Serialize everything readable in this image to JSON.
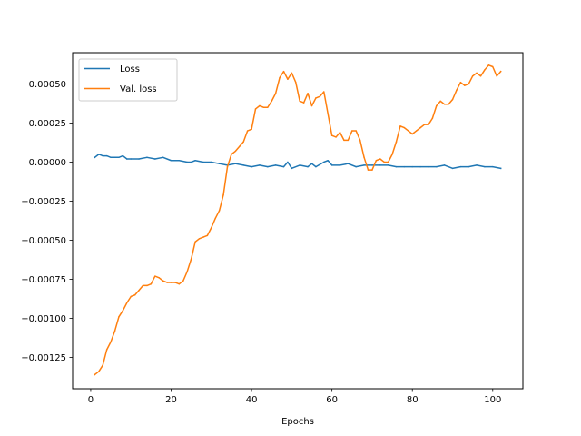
{
  "chart_data": {
    "type": "line",
    "xlabel": "Epochs",
    "ylabel": "",
    "xlim": [
      -4.5,
      107.5
    ],
    "ylim": [
      -0.00145,
      0.0007
    ],
    "xticks": [
      0,
      20,
      40,
      60,
      80,
      100
    ],
    "xtick_labels": [
      "0",
      "20",
      "40",
      "60",
      "80",
      "100"
    ],
    "yticks": [
      -0.00125,
      -0.001,
      -0.00075,
      -0.0005,
      -0.00025,
      0,
      0.00025,
      0.0005
    ],
    "ytick_labels": [
      "−0.00125",
      "−0.00100",
      "−0.00075",
      "−0.00050",
      "−0.00025",
      "0.00000",
      "0.00025",
      "0.00050"
    ],
    "grid": false,
    "legend": {
      "position": "upper-left"
    },
    "series": [
      {
        "name": "Loss",
        "color": "#1f77b4",
        "points": [
          [
            1,
            3e-05
          ],
          [
            2,
            5e-05
          ],
          [
            3,
            4e-05
          ],
          [
            4,
            4e-05
          ],
          [
            5,
            3e-05
          ],
          [
            6,
            3e-05
          ],
          [
            7,
            3e-05
          ],
          [
            8,
            4e-05
          ],
          [
            9,
            2e-05
          ],
          [
            10,
            2e-05
          ],
          [
            12,
            2e-05
          ],
          [
            14,
            3e-05
          ],
          [
            16,
            2e-05
          ],
          [
            18,
            3e-05
          ],
          [
            20,
            1e-05
          ],
          [
            22,
            1e-05
          ],
          [
            24,
            0.0
          ],
          [
            25,
            0.0
          ],
          [
            26,
            1e-05
          ],
          [
            28,
            0.0
          ],
          [
            30,
            0.0
          ],
          [
            32,
            -1e-05
          ],
          [
            34,
            -2e-05
          ],
          [
            36,
            -1e-05
          ],
          [
            38,
            -2e-05
          ],
          [
            40,
            -3e-05
          ],
          [
            42,
            -2e-05
          ],
          [
            44,
            -3e-05
          ],
          [
            46,
            -2e-05
          ],
          [
            48,
            -3e-05
          ],
          [
            49,
            0.0
          ],
          [
            50,
            -4e-05
          ],
          [
            52,
            -2e-05
          ],
          [
            54,
            -3e-05
          ],
          [
            55,
            -1e-05
          ],
          [
            56,
            -3e-05
          ],
          [
            58,
            0.0
          ],
          [
            59,
            1e-05
          ],
          [
            60,
            -2e-05
          ],
          [
            62,
            -2e-05
          ],
          [
            64,
            -1e-05
          ],
          [
            66,
            -3e-05
          ],
          [
            68,
            -2e-05
          ],
          [
            70,
            -2e-05
          ],
          [
            72,
            -2e-05
          ],
          [
            74,
            -2e-05
          ],
          [
            76,
            -3e-05
          ],
          [
            78,
            -3e-05
          ],
          [
            80,
            -3e-05
          ],
          [
            82,
            -3e-05
          ],
          [
            84,
            -3e-05
          ],
          [
            86,
            -3e-05
          ],
          [
            88,
            -2e-05
          ],
          [
            90,
            -4e-05
          ],
          [
            92,
            -3e-05
          ],
          [
            94,
            -3e-05
          ],
          [
            96,
            -2e-05
          ],
          [
            98,
            -3e-05
          ],
          [
            100,
            -3e-05
          ],
          [
            102,
            -4e-05
          ]
        ]
      },
      {
        "name": "Val. loss",
        "color": "#ff7f0e",
        "points": [
          [
            1,
            -0.00136
          ],
          [
            2,
            -0.00134
          ],
          [
            3,
            -0.0013
          ],
          [
            4,
            -0.0012
          ],
          [
            5,
            -0.00115
          ],
          [
            6,
            -0.00108
          ],
          [
            7,
            -0.00099
          ],
          [
            8,
            -0.00095
          ],
          [
            9,
            -0.0009
          ],
          [
            10,
            -0.00086
          ],
          [
            11,
            -0.00085
          ],
          [
            12,
            -0.00082
          ],
          [
            13,
            -0.00079
          ],
          [
            14,
            -0.00079
          ],
          [
            15,
            -0.00078
          ],
          [
            16,
            -0.00073
          ],
          [
            17,
            -0.00074
          ],
          [
            18,
            -0.00076
          ],
          [
            19,
            -0.00077
          ],
          [
            20,
            -0.00077
          ],
          [
            21,
            -0.00077
          ],
          [
            22,
            -0.00078
          ],
          [
            23,
            -0.00076
          ],
          [
            24,
            -0.0007
          ],
          [
            25,
            -0.00062
          ],
          [
            26,
            -0.00051
          ],
          [
            27,
            -0.00049
          ],
          [
            28,
            -0.00048
          ],
          [
            29,
            -0.00047
          ],
          [
            30,
            -0.00042
          ],
          [
            31,
            -0.00036
          ],
          [
            32,
            -0.00031
          ],
          [
            33,
            -0.00021
          ],
          [
            34,
            -3e-05
          ],
          [
            35,
            5e-05
          ],
          [
            36,
            7e-05
          ],
          [
            37,
            0.0001
          ],
          [
            38,
            0.00013
          ],
          [
            39,
            0.0002
          ],
          [
            40,
            0.00021
          ],
          [
            41,
            0.00034
          ],
          [
            42,
            0.00036
          ],
          [
            43,
            0.00035
          ],
          [
            44,
            0.00035
          ],
          [
            45,
            0.00039
          ],
          [
            46,
            0.00044
          ],
          [
            47,
            0.00054
          ],
          [
            48,
            0.00058
          ],
          [
            49,
            0.00053
          ],
          [
            50,
            0.00057
          ],
          [
            51,
            0.00051
          ],
          [
            52,
            0.00039
          ],
          [
            53,
            0.00038
          ],
          [
            54,
            0.00044
          ],
          [
            55,
            0.00036
          ],
          [
            56,
            0.00041
          ],
          [
            57,
            0.00042
          ],
          [
            58,
            0.00045
          ],
          [
            59,
            0.00031
          ],
          [
            60,
            0.00017
          ],
          [
            61,
            0.00016
          ],
          [
            62,
            0.00019
          ],
          [
            63,
            0.00014
          ],
          [
            64,
            0.00014
          ],
          [
            65,
            0.0002
          ],
          [
            66,
            0.0002
          ],
          [
            67,
            0.00014
          ],
          [
            68,
            3e-05
          ],
          [
            69,
            -5e-05
          ],
          [
            70,
            -5e-05
          ],
          [
            71,
            1e-05
          ],
          [
            72,
            2e-05
          ],
          [
            73,
            0.0
          ],
          [
            74,
            0.0
          ],
          [
            75,
            5e-05
          ],
          [
            76,
            0.00013
          ],
          [
            77,
            0.00023
          ],
          [
            78,
            0.00022
          ],
          [
            79,
            0.0002
          ],
          [
            80,
            0.00018
          ],
          [
            81,
            0.0002
          ],
          [
            82,
            0.00022
          ],
          [
            83,
            0.00024
          ],
          [
            84,
            0.00024
          ],
          [
            85,
            0.00028
          ],
          [
            86,
            0.00036
          ],
          [
            87,
            0.00039
          ],
          [
            88,
            0.00037
          ],
          [
            89,
            0.00037
          ],
          [
            90,
            0.0004
          ],
          [
            91,
            0.00046
          ],
          [
            92,
            0.00051
          ],
          [
            93,
            0.00049
          ],
          [
            94,
            0.0005
          ],
          [
            95,
            0.00055
          ],
          [
            96,
            0.00057
          ],
          [
            97,
            0.00055
          ],
          [
            98,
            0.00059
          ],
          [
            99,
            0.00062
          ],
          [
            100,
            0.00061
          ],
          [
            101,
            0.00055
          ],
          [
            102,
            0.00058
          ]
        ]
      }
    ]
  }
}
